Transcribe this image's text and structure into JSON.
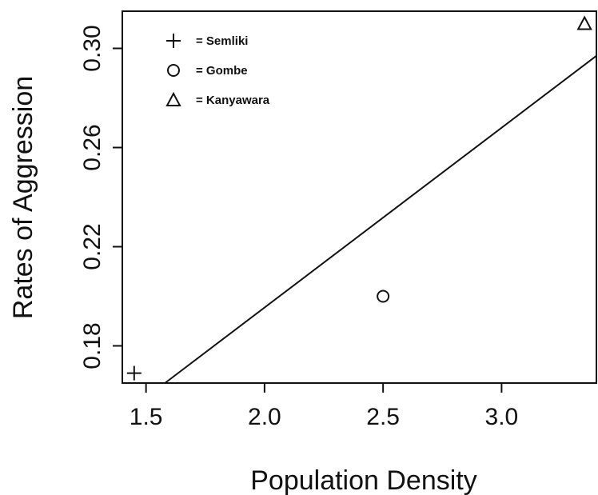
{
  "chart_data": {
    "type": "scatter",
    "xlabel": "Population Density",
    "ylabel": "Rates of Aggression",
    "xlim": [
      1.4,
      3.4
    ],
    "ylim": [
      0.165,
      0.315
    ],
    "x_ticks": [
      "1.5",
      "2.0",
      "2.5",
      "3.0"
    ],
    "y_ticks": [
      "0.18",
      "0.22",
      "0.26",
      "0.30"
    ],
    "grid": false,
    "legend_position": "top-left",
    "series": [
      {
        "name": "= Semliki",
        "marker": "plus",
        "x": [
          1.45
        ],
        "y": [
          0.169
        ]
      },
      {
        "name": "= Gombe",
        "marker": "circle",
        "x": [
          2.5
        ],
        "y": [
          0.2
        ]
      },
      {
        "name": "= Kanyawara",
        "marker": "triangle",
        "x": [
          3.35
        ],
        "y": [
          0.31
        ]
      }
    ],
    "fit_line": {
      "from": [
        1.58,
        0.165
      ],
      "to": [
        3.4,
        0.297
      ]
    }
  }
}
